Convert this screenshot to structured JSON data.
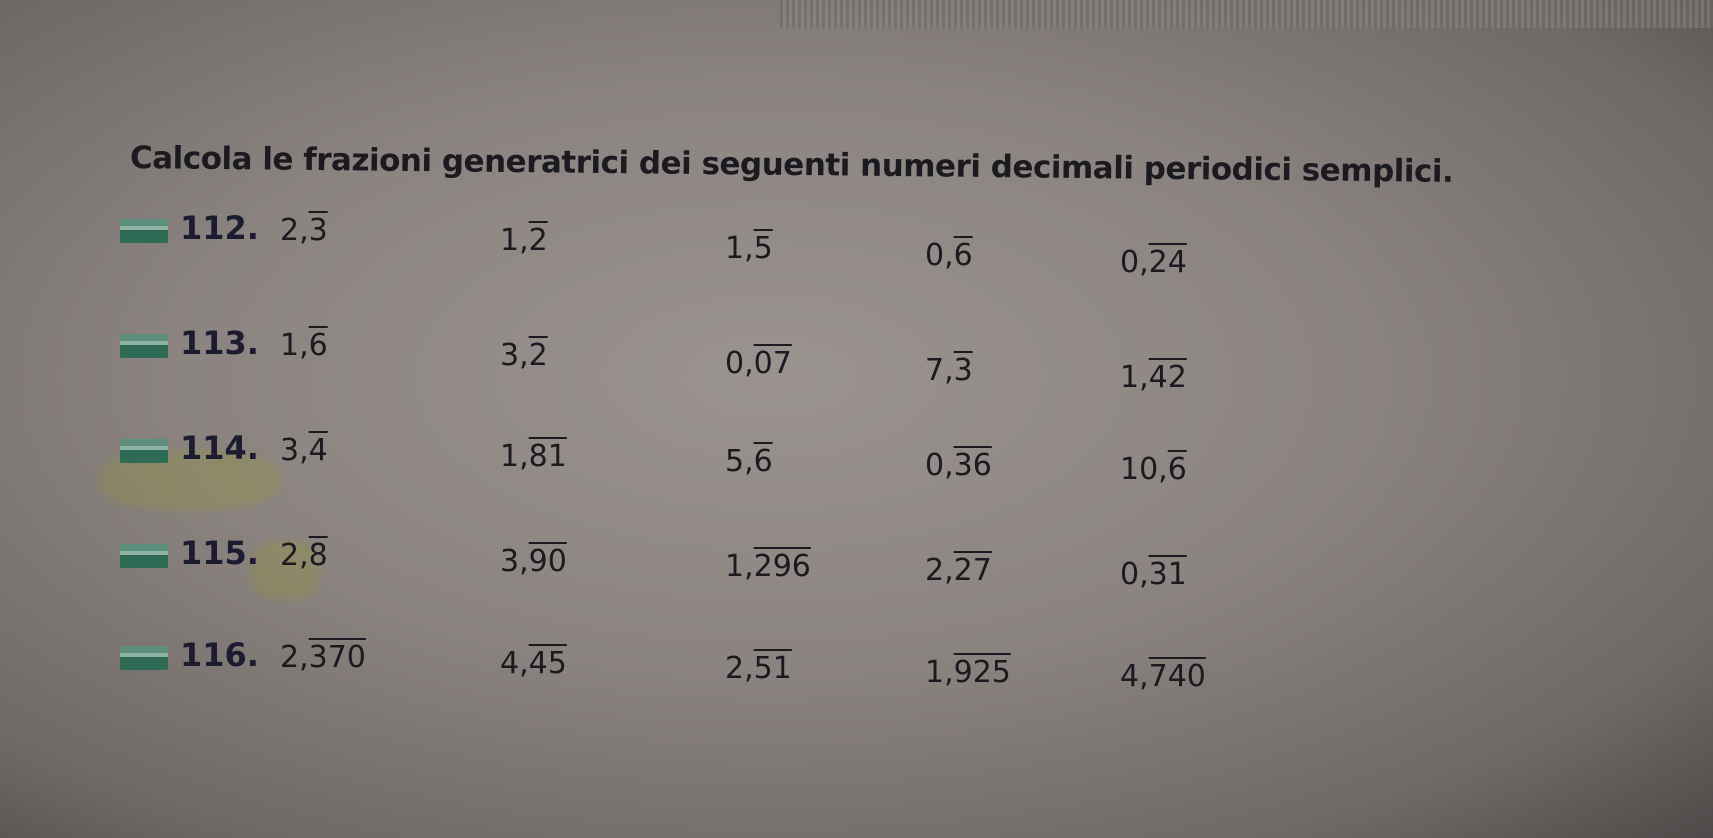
{
  "title": "Calcola le frazioni generatrici dei seguenti numeri decimali periodici semplici.",
  "exercises": [
    {
      "number": "112.",
      "values": [
        {
          "int": "2,",
          "period": "3"
        },
        {
          "int": "1,",
          "period": "2"
        },
        {
          "int": "1,",
          "period": "5"
        },
        {
          "int": "0,",
          "period": "6"
        },
        {
          "int": "0,",
          "period": "24"
        }
      ]
    },
    {
      "number": "113.",
      "values": [
        {
          "int": "1,",
          "period": "6"
        },
        {
          "int": "3,",
          "period": "2"
        },
        {
          "int": "0,",
          "period": "07"
        },
        {
          "int": "7,",
          "period": "3"
        },
        {
          "int": "1,",
          "period": "42"
        }
      ]
    },
    {
      "number": "114.",
      "values": [
        {
          "int": "3,",
          "period": "4"
        },
        {
          "int": "1,",
          "period": "81"
        },
        {
          "int": "5,",
          "period": "6"
        },
        {
          "int": "0,",
          "period": "36"
        },
        {
          "int": "10,",
          "period": "6"
        }
      ]
    },
    {
      "number": "115.",
      "values": [
        {
          "int": "2,",
          "period": "8"
        },
        {
          "int": "3,",
          "period": "90"
        },
        {
          "int": "1,",
          "period": "296"
        },
        {
          "int": "2,",
          "period": "27"
        },
        {
          "int": "0,",
          "period": "31"
        }
      ]
    },
    {
      "number": "116.",
      "values": [
        {
          "int": "2,",
          "period": "370"
        },
        {
          "int": "4,",
          "period": "45"
        },
        {
          "int": "2,",
          "period": "51"
        },
        {
          "int": "1,",
          "period": "925"
        },
        {
          "int": "4,",
          "period": "740"
        }
      ]
    }
  ],
  "colors": {
    "badge": "#2f6a57",
    "highlighter": "#b5b44a",
    "text": "#1b1a20"
  }
}
